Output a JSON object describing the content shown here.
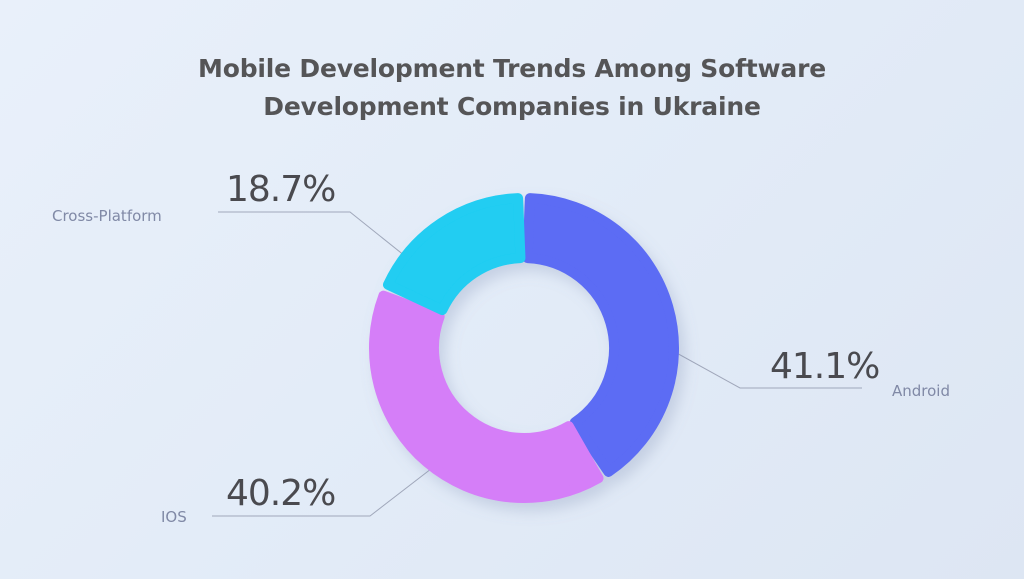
{
  "chart_data": {
    "type": "pie",
    "title": "Mobile Development Trends Among Software Development Companies in Ukraine",
    "title_lines": [
      "Mobile Development Trends Among Software",
      "Development Companies in Ukraine"
    ],
    "slices": [
      {
        "label": "Android",
        "value": 41.1,
        "value_label": "41.1%",
        "color": "#5b6cf4"
      },
      {
        "label": "IOS",
        "value": 40.2,
        "value_label": "40.2%",
        "color": "#d57ef8"
      },
      {
        "label": "Cross-Platform",
        "value": 18.7,
        "value_label": "18.7%",
        "color": "#20cdf2"
      }
    ],
    "donut": true,
    "legend": "none"
  }
}
